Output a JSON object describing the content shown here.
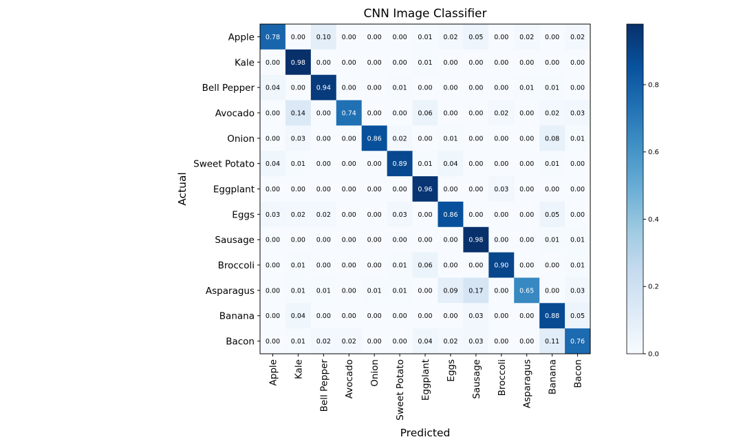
{
  "chart_data": {
    "type": "heatmap",
    "title": "CNN Image Classifier",
    "xlabel": "Predicted",
    "ylabel": "Actual",
    "x_categories": [
      "Apple",
      "Kale",
      "Bell Pepper",
      "Avocado",
      "Onion",
      "Sweet Potato",
      "Eggplant",
      "Eggs",
      "Sausage",
      "Broccoli",
      "Asparagus",
      "Banana",
      "Bacon"
    ],
    "y_categories": [
      "Apple",
      "Kale",
      "Bell Pepper",
      "Avocado",
      "Onion",
      "Sweet Potato",
      "Eggplant",
      "Eggs",
      "Sausage",
      "Broccoli",
      "Asparagus",
      "Banana",
      "Bacon"
    ],
    "values": [
      [
        0.78,
        0.0,
        0.1,
        0.0,
        0.0,
        0.0,
        0.01,
        0.02,
        0.05,
        0.0,
        0.02,
        0.0,
        0.02
      ],
      [
        0.0,
        0.98,
        0.0,
        0.0,
        0.0,
        0.0,
        0.01,
        0.0,
        0.0,
        0.0,
        0.0,
        0.0,
        0.0
      ],
      [
        0.04,
        0.0,
        0.94,
        0.0,
        0.0,
        0.01,
        0.0,
        0.0,
        0.0,
        0.0,
        0.01,
        0.01,
        0.0
      ],
      [
        0.0,
        0.14,
        0.0,
        0.74,
        0.0,
        0.0,
        0.06,
        0.0,
        0.0,
        0.02,
        0.0,
        0.02,
        0.03
      ],
      [
        0.0,
        0.03,
        0.0,
        0.0,
        0.86,
        0.02,
        0.0,
        0.01,
        0.0,
        0.0,
        0.0,
        0.08,
        0.01
      ],
      [
        0.04,
        0.01,
        0.0,
        0.0,
        0.0,
        0.89,
        0.01,
        0.04,
        0.0,
        0.0,
        0.0,
        0.01,
        0.0
      ],
      [
        0.0,
        0.0,
        0.0,
        0.0,
        0.0,
        0.0,
        0.96,
        0.0,
        0.0,
        0.03,
        0.0,
        0.0,
        0.0
      ],
      [
        0.03,
        0.02,
        0.02,
        0.0,
        0.0,
        0.03,
        0.0,
        0.86,
        0.0,
        0.0,
        0.0,
        0.05,
        0.0
      ],
      [
        0.0,
        0.0,
        0.0,
        0.0,
        0.0,
        0.0,
        0.0,
        0.0,
        0.98,
        0.0,
        0.0,
        0.01,
        0.01
      ],
      [
        0.0,
        0.01,
        0.0,
        0.0,
        0.0,
        0.01,
        0.06,
        0.0,
        0.0,
        0.9,
        0.0,
        0.0,
        0.01
      ],
      [
        0.0,
        0.01,
        0.01,
        0.0,
        0.01,
        0.01,
        0.0,
        0.09,
        0.17,
        0.0,
        0.65,
        0.0,
        0.03
      ],
      [
        0.0,
        0.04,
        0.0,
        0.0,
        0.0,
        0.0,
        0.0,
        0.0,
        0.03,
        0.0,
        0.0,
        0.88,
        0.05
      ],
      [
        0.0,
        0.01,
        0.02,
        0.02,
        0.0,
        0.0,
        0.04,
        0.02,
        0.03,
        0.0,
        0.0,
        0.11,
        0.76
      ]
    ],
    "value_format": "0.00",
    "colorscale": "Blues",
    "colorscale_stops": [
      "#f7fbff",
      "#deebf7",
      "#c6dbef",
      "#9ecae1",
      "#6baed6",
      "#4292c6",
      "#2171b5",
      "#08519c",
      "#08306b"
    ],
    "color_range": [
      0,
      0.98
    ],
    "colorbar_ticks": [
      0.0,
      0.2,
      0.4,
      0.6,
      0.8
    ],
    "colorbar_tick_labels": [
      "0.0",
      "0.2",
      "0.4",
      "0.6",
      "0.8"
    ],
    "text_color_dark_bg": "#ffffff",
    "text_color_light_bg": "#000000",
    "grid": false,
    "legend": "colorbar-right"
  }
}
